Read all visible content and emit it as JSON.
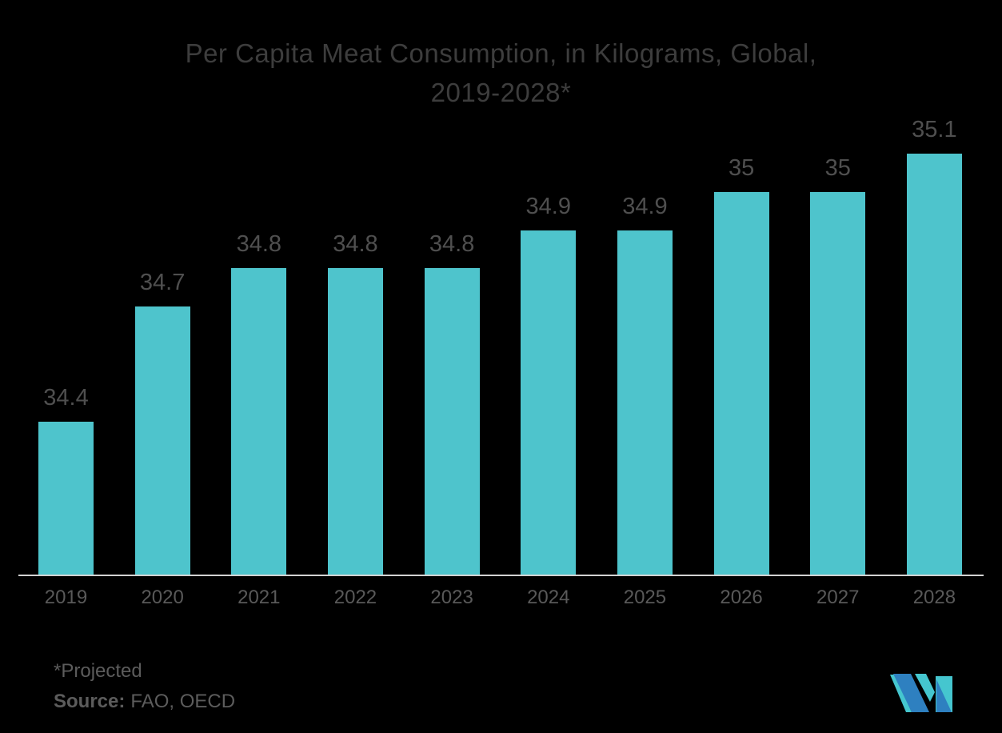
{
  "canvas_bg": "#000000",
  "header": {
    "title_line1": "Per Capita Meat Consumption, in Kilograms, Global,",
    "title_line2": "2019-2028*"
  },
  "footer": {
    "note": "*Projected",
    "source_label": "Source:",
    "source_value": "FAO, OECD"
  },
  "colors": {
    "canvas_bg": "#000000",
    "bar": "#4EC4CC",
    "axis_line": "#D2D2D2",
    "title_text": "#3D3D3D",
    "label_text": "#4F4F4F",
    "tick_text": "#595959",
    "footer_text": "#5C5C5C",
    "logo_teal": "#45C6CF",
    "logo_blue": "#2E80C0"
  },
  "chart_data": {
    "type": "bar",
    "title": "Per Capita Meat Consumption, in Kilograms, Global, 2019-2028*",
    "categories": [
      "2019",
      "2020",
      "2021",
      "2022",
      "2023",
      "2024",
      "2025",
      "2026",
      "2027",
      "2028"
    ],
    "values": [
      34.4,
      34.7,
      34.8,
      34.8,
      34.8,
      34.9,
      34.9,
      35,
      35,
      35.1
    ],
    "unit": "kilograms",
    "xlabel": "",
    "ylabel": "",
    "ylim": [
      34,
      35.1
    ],
    "grid": false,
    "legend": false,
    "data_labels": true,
    "footnote": "*Projected",
    "source": "FAO, OECD"
  }
}
